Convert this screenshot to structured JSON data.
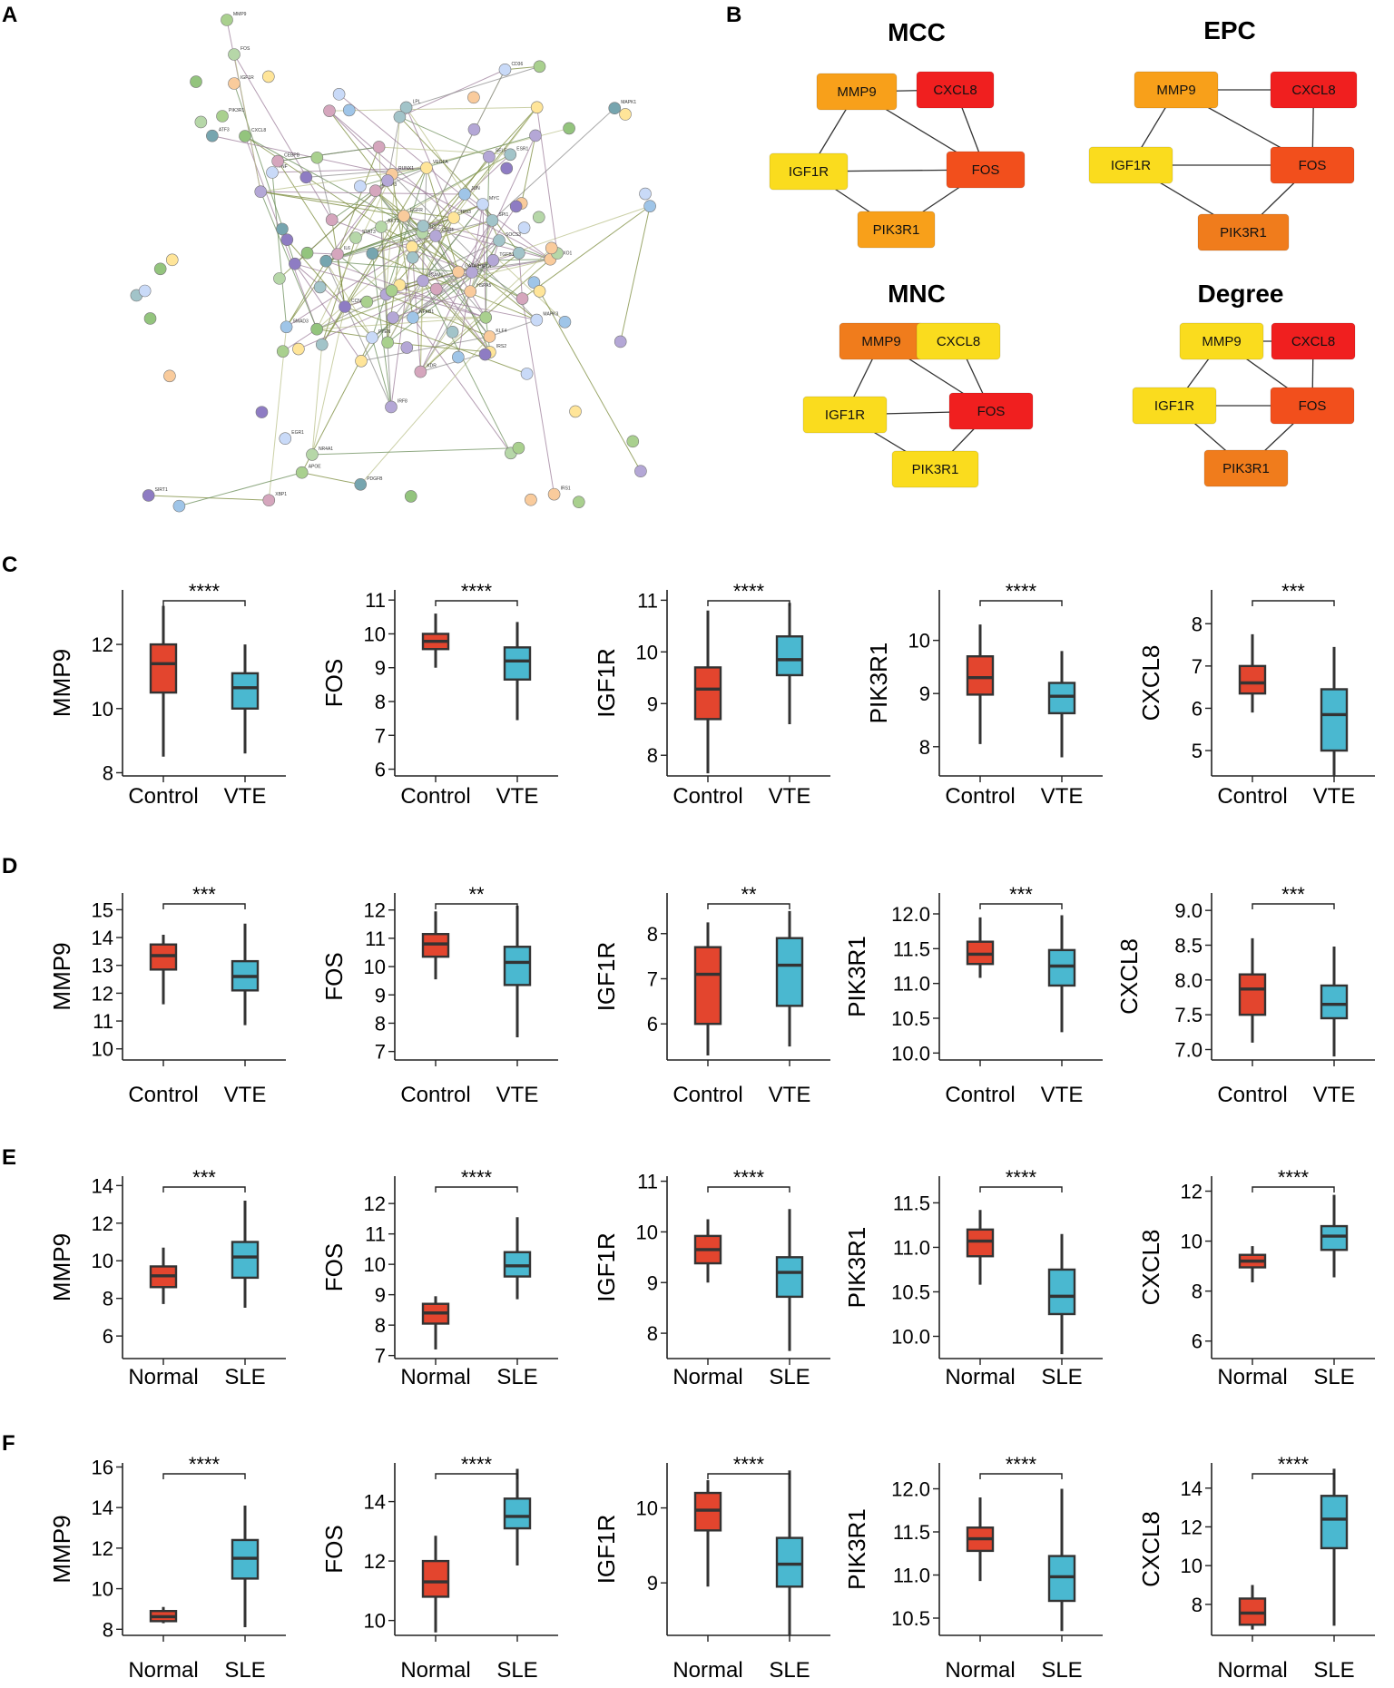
{
  "panel_labels": {
    "a": "A",
    "b": "B",
    "c": "C",
    "d": "D",
    "e": "E",
    "f": "F"
  },
  "colors": {
    "group1": "#e3452e",
    "group2": "#4ab8d0",
    "node_red": "#f01f1f",
    "node_red_orange": "#f24f1c",
    "node_dark_orange": "#f07c1c",
    "node_orange": "#f8a01a",
    "node_yellow": "#fadc1e"
  },
  "network": {
    "labels": [
      "MMP9",
      "FOS",
      "IGF1R",
      "PIK3R1",
      "CXCL8",
      "TNF",
      "IL6",
      "STAT3",
      "AKT1",
      "EGFR",
      "CD44",
      "TP53",
      "JUN",
      "MYC",
      "SOCS3",
      "CCND1",
      "PTEN",
      "NFKB1",
      "HIF1A",
      "VEGFA",
      "ICAM1",
      "SELE",
      "CD36",
      "LPL",
      "APOE",
      "IRS1",
      "IRS2",
      "FOXO1",
      "SIRT1",
      "ESR1",
      "KDR",
      "PDGFB",
      "TGFB1",
      "SMAD3",
      "BCL2",
      "CASP3",
      "MAPK1",
      "MAPK3",
      "HSPA5",
      "XBP1",
      "ATF3",
      "EGR1",
      "DUSP1",
      "KLF4",
      "NR4A1",
      "CEBPB",
      "SPI1",
      "IRF8",
      "RUNX1",
      "GATA2"
    ]
  },
  "hub_networks": [
    {
      "method": "MCC",
      "nodes": [
        {
          "label": "MMP9",
          "color": "node_orange"
        },
        {
          "label": "CXCL8",
          "color": "node_red"
        },
        {
          "label": "IGF1R",
          "color": "node_yellow"
        },
        {
          "label": "FOS",
          "color": "node_red_orange"
        },
        {
          "label": "PIK3R1",
          "color": "node_orange"
        }
      ]
    },
    {
      "method": "EPC",
      "nodes": [
        {
          "label": "MMP9",
          "color": "node_orange"
        },
        {
          "label": "CXCL8",
          "color": "node_red"
        },
        {
          "label": "IGF1R",
          "color": "node_yellow"
        },
        {
          "label": "FOS",
          "color": "node_red_orange"
        },
        {
          "label": "PIK3R1",
          "color": "node_dark_orange"
        }
      ]
    },
    {
      "method": "MNC",
      "nodes": [
        {
          "label": "MMP9",
          "color": "node_dark_orange"
        },
        {
          "label": "CXCL8",
          "color": "node_yellow"
        },
        {
          "label": "IGF1R",
          "color": "node_yellow"
        },
        {
          "label": "FOS",
          "color": "node_red"
        },
        {
          "label": "PIK3R1",
          "color": "node_yellow"
        }
      ]
    },
    {
      "method": "Degree",
      "nodes": [
        {
          "label": "MMP9",
          "color": "node_yellow"
        },
        {
          "label": "CXCL8",
          "color": "node_red"
        },
        {
          "label": "IGF1R",
          "color": "node_yellow"
        },
        {
          "label": "FOS",
          "color": "node_red_orange"
        },
        {
          "label": "PIK3R1",
          "color": "node_dark_orange"
        }
      ]
    }
  ],
  "chart_data": [
    {
      "panel": "C",
      "type": "boxplot",
      "groups": [
        "Control",
        "VTE"
      ],
      "plots": [
        {
          "gene": "MMP9",
          "ylabel": "MMP9",
          "ylim": [
            7.9,
            13.7
          ],
          "ticks": [
            8,
            10,
            12
          ],
          "sig": "****",
          "boxes": [
            {
              "min": 8.5,
              "q1": 10.5,
              "median": 11.4,
              "q3": 12.0,
              "max": 13.2
            },
            {
              "min": 8.6,
              "q1": 10.0,
              "median": 10.65,
              "q3": 11.1,
              "max": 12.0
            }
          ]
        },
        {
          "gene": "FOS",
          "ylabel": "FOS",
          "ylim": [
            5.8,
            11.3
          ],
          "ticks": [
            6,
            7,
            8,
            9,
            10,
            11
          ],
          "sig": "****",
          "boxes": [
            {
              "min": 9.0,
              "q1": 9.55,
              "median": 9.78,
              "q3": 10.0,
              "max": 10.6
            },
            {
              "min": 7.45,
              "q1": 8.65,
              "median": 9.2,
              "q3": 9.6,
              "max": 10.35
            }
          ]
        },
        {
          "gene": "IGF1R",
          "ylabel": "IGF1R",
          "ylim": [
            7.6,
            11.2
          ],
          "ticks": [
            8,
            9,
            10,
            11
          ],
          "sig": "****",
          "boxes": [
            {
              "min": 7.65,
              "q1": 8.7,
              "median": 9.28,
              "q3": 9.7,
              "max": 10.8
            },
            {
              "min": 8.6,
              "q1": 9.55,
              "median": 9.85,
              "q3": 10.3,
              "max": 10.95
            }
          ]
        },
        {
          "gene": "PIK3R1",
          "ylabel": "PIK3R1",
          "ylim": [
            7.45,
            10.95
          ],
          "ticks": [
            8,
            9,
            10
          ],
          "sig": "****",
          "boxes": [
            {
              "min": 8.05,
              "q1": 8.98,
              "median": 9.3,
              "q3": 9.7,
              "max": 10.3
            },
            {
              "min": 7.8,
              "q1": 8.63,
              "median": 8.95,
              "q3": 9.2,
              "max": 9.8
            }
          ]
        },
        {
          "gene": "CXCL8",
          "ylabel": "CXCL8",
          "ylim": [
            4.4,
            8.8
          ],
          "ticks": [
            5,
            6,
            7,
            8
          ],
          "sig": "***",
          "boxes": [
            {
              "min": 5.9,
              "q1": 6.35,
              "median": 6.6,
              "q3": 7.0,
              "max": 7.75
            },
            {
              "min": 4.4,
              "q1": 5.0,
              "median": 5.85,
              "q3": 6.45,
              "max": 7.45
            }
          ]
        }
      ]
    },
    {
      "panel": "D",
      "type": "boxplot",
      "groups": [
        "Control",
        "VTE"
      ],
      "plots": [
        {
          "gene": "MMP9",
          "ylabel": "MMP9",
          "ylim": [
            9.6,
            15.6
          ],
          "ticks": [
            10,
            11,
            12,
            13,
            14,
            15
          ],
          "sig": "***",
          "boxes": [
            {
              "min": 11.6,
              "q1": 12.85,
              "median": 13.35,
              "q3": 13.75,
              "max": 14.1
            },
            {
              "min": 10.85,
              "q1": 12.1,
              "median": 12.6,
              "q3": 13.15,
              "max": 14.5
            }
          ]
        },
        {
          "gene": "FOS",
          "ylabel": "FOS",
          "ylim": [
            6.7,
            12.6
          ],
          "ticks": [
            7,
            8,
            9,
            10,
            11,
            12
          ],
          "sig": "**",
          "boxes": [
            {
              "min": 9.55,
              "q1": 10.35,
              "median": 10.8,
              "q3": 11.15,
              "max": 11.95
            },
            {
              "min": 7.5,
              "q1": 9.35,
              "median": 10.15,
              "q3": 10.7,
              "max": 12.15
            }
          ]
        },
        {
          "gene": "IGF1R",
          "ylabel": "IGF1R",
          "ylim": [
            5.2,
            8.9
          ],
          "ticks": [
            6,
            7,
            8
          ],
          "sig": "**",
          "boxes": [
            {
              "min": 5.3,
              "q1": 6.0,
              "median": 7.1,
              "q3": 7.7,
              "max": 8.25
            },
            {
              "min": 5.5,
              "q1": 6.4,
              "median": 7.3,
              "q3": 7.9,
              "max": 8.5
            }
          ]
        },
        {
          "gene": "PIK3R1",
          "ylabel": "PIK3R1",
          "ylim": [
            9.9,
            12.3
          ],
          "ticks": [
            10.0,
            10.5,
            11.0,
            11.5,
            12.0
          ],
          "decimals": 1,
          "sig": "***",
          "boxes": [
            {
              "min": 11.08,
              "q1": 11.28,
              "median": 11.42,
              "q3": 11.6,
              "max": 11.95
            },
            {
              "min": 10.3,
              "q1": 10.97,
              "median": 11.25,
              "q3": 11.48,
              "max": 11.98
            }
          ]
        },
        {
          "gene": "CXCL8",
          "ylabel": "CXCL8",
          "ylim": [
            6.85,
            9.25
          ],
          "ticks": [
            7.0,
            7.5,
            8.0,
            8.5,
            9.0
          ],
          "decimals": 1,
          "sig": "***",
          "boxes": [
            {
              "min": 7.1,
              "q1": 7.5,
              "median": 7.87,
              "q3": 8.08,
              "max": 8.6
            },
            {
              "min": 6.9,
              "q1": 7.45,
              "median": 7.65,
              "q3": 7.92,
              "max": 8.48
            }
          ]
        }
      ]
    },
    {
      "panel": "E",
      "type": "boxplot",
      "groups": [
        "Normal",
        "SLE"
      ],
      "plots": [
        {
          "gene": "MMP9",
          "ylabel": "MMP9",
          "ylim": [
            4.8,
            14.5
          ],
          "ticks": [
            6,
            8,
            10,
            12,
            14
          ],
          "sig": "***",
          "boxes": [
            {
              "min": 7.7,
              "q1": 8.6,
              "median": 9.2,
              "q3": 9.7,
              "max": 10.7
            },
            {
              "min": 7.5,
              "q1": 9.1,
              "median": 10.2,
              "q3": 11.0,
              "max": 13.2
            }
          ]
        },
        {
          "gene": "FOS",
          "ylabel": "FOS",
          "ylim": [
            6.9,
            12.9
          ],
          "ticks": [
            7,
            8,
            9,
            10,
            11,
            12
          ],
          "sig": "****",
          "boxes": [
            {
              "min": 7.2,
              "q1": 8.05,
              "median": 8.4,
              "q3": 8.7,
              "max": 8.95
            },
            {
              "min": 8.85,
              "q1": 9.6,
              "median": 9.95,
              "q3": 10.4,
              "max": 11.55
            }
          ]
        },
        {
          "gene": "IGF1R",
          "ylabel": "IGF1R",
          "ylim": [
            7.5,
            11.1
          ],
          "ticks": [
            8,
            9,
            10,
            11
          ],
          "sig": "****",
          "boxes": [
            {
              "min": 9.0,
              "q1": 9.38,
              "median": 9.65,
              "q3": 9.92,
              "max": 10.25
            },
            {
              "min": 7.65,
              "q1": 8.72,
              "median": 9.2,
              "q3": 9.5,
              "max": 10.45
            }
          ]
        },
        {
          "gene": "PIK3R1",
          "ylabel": "PIK3R1",
          "ylim": [
            9.75,
            11.8
          ],
          "ticks": [
            10.0,
            10.5,
            11.0,
            11.5
          ],
          "decimals": 1,
          "sig": "****",
          "boxes": [
            {
              "min": 10.58,
              "q1": 10.9,
              "median": 11.07,
              "q3": 11.2,
              "max": 11.42
            },
            {
              "min": 9.8,
              "q1": 10.25,
              "median": 10.45,
              "q3": 10.75,
              "max": 11.15
            }
          ]
        },
        {
          "gene": "CXCL8",
          "ylabel": "CXCL8",
          "ylim": [
            5.3,
            12.6
          ],
          "ticks": [
            6,
            8,
            10,
            12
          ],
          "sig": "****",
          "boxes": [
            {
              "min": 8.35,
              "q1": 8.95,
              "median": 9.2,
              "q3": 9.45,
              "max": 9.8
            },
            {
              "min": 8.55,
              "q1": 9.65,
              "median": 10.2,
              "q3": 10.6,
              "max": 11.85
            }
          ]
        }
      ]
    },
    {
      "panel": "F",
      "type": "boxplot",
      "groups": [
        "Normal",
        "SLE"
      ],
      "plots": [
        {
          "gene": "MMP9",
          "ylabel": "MMP9",
          "ylim": [
            7.7,
            16.2
          ],
          "ticks": [
            8,
            10,
            12,
            14,
            16
          ],
          "sig": "****",
          "boxes": [
            {
              "min": 8.3,
              "q1": 8.4,
              "median": 8.62,
              "q3": 8.9,
              "max": 9.1
            },
            {
              "min": 8.1,
              "q1": 10.5,
              "median": 11.5,
              "q3": 12.4,
              "max": 14.1
            }
          ]
        },
        {
          "gene": "FOS",
          "ylabel": "FOS",
          "ylim": [
            9.5,
            15.3
          ],
          "ticks": [
            10,
            12,
            14
          ],
          "sig": "****",
          "boxes": [
            {
              "min": 9.6,
              "q1": 10.8,
              "median": 11.3,
              "q3": 12.0,
              "max": 12.85
            },
            {
              "min": 11.85,
              "q1": 13.1,
              "median": 13.5,
              "q3": 14.1,
              "max": 15.1
            }
          ]
        },
        {
          "gene": "IGF1R",
          "ylabel": "IGF1R",
          "ylim": [
            8.3,
            10.6
          ],
          "ticks": [
            9,
            10
          ],
          "sig": "****",
          "boxes": [
            {
              "min": 8.95,
              "q1": 9.7,
              "median": 9.97,
              "q3": 10.2,
              "max": 10.37
            },
            {
              "min": 8.3,
              "q1": 8.95,
              "median": 9.25,
              "q3": 9.6,
              "max": 10.5
            }
          ]
        },
        {
          "gene": "PIK3R1",
          "ylabel": "PIK3R1",
          "ylim": [
            10.3,
            12.3
          ],
          "ticks": [
            10.5,
            11.0,
            11.5,
            12.0
          ],
          "decimals": 1,
          "sig": "****",
          "boxes": [
            {
              "min": 10.93,
              "q1": 11.28,
              "median": 11.42,
              "q3": 11.55,
              "max": 11.9
            },
            {
              "min": 10.35,
              "q1": 10.7,
              "median": 10.98,
              "q3": 11.22,
              "max": 12.0
            }
          ]
        },
        {
          "gene": "CXCL8",
          "ylabel": "CXCL8",
          "ylim": [
            6.4,
            15.3
          ],
          "ticks": [
            8,
            10,
            12,
            14
          ],
          "sig": "****",
          "boxes": [
            {
              "min": 6.7,
              "q1": 6.95,
              "median": 7.55,
              "q3": 8.3,
              "max": 9.0
            },
            {
              "min": 6.9,
              "q1": 10.9,
              "median": 12.4,
              "q3": 13.6,
              "max": 15.0
            }
          ]
        }
      ]
    }
  ]
}
